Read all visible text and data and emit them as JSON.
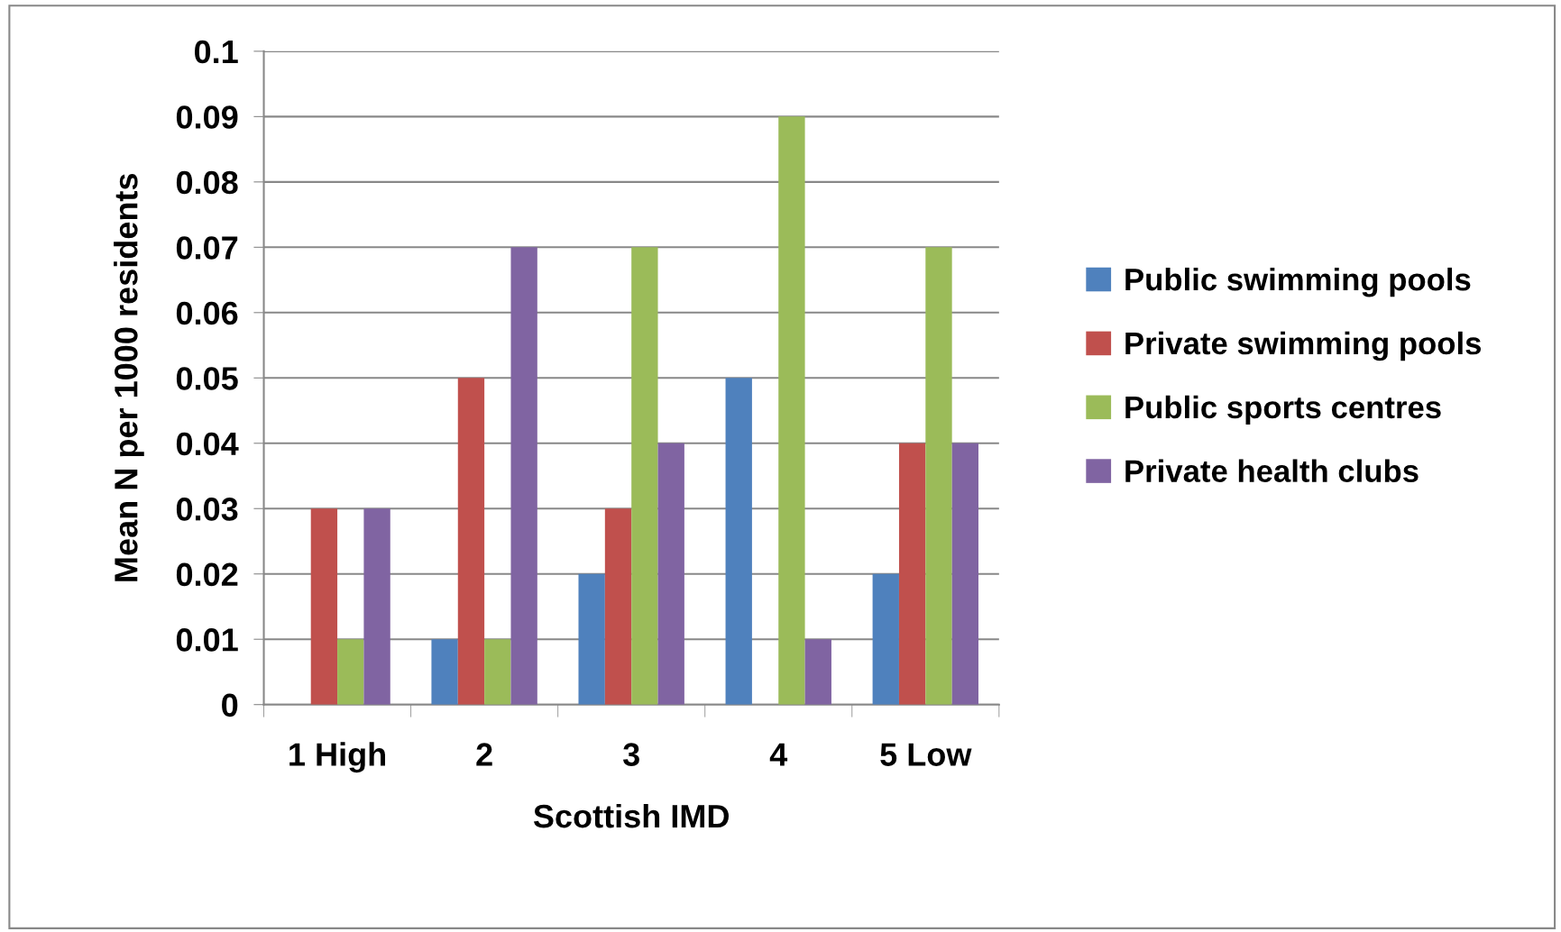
{
  "chart_data": {
    "type": "bar",
    "xlabel": "Scottish IMD",
    "ylabel": "Mean N per 1000 residents",
    "categories": [
      "1 High",
      "2",
      "3",
      "4",
      "5 Low"
    ],
    "series": [
      {
        "name": "Public swimming pools",
        "color": "#4f81bd",
        "values": [
          0,
          0.01,
          0.02,
          0.05,
          0.02
        ]
      },
      {
        "name": "Private swimming pools",
        "color": "#c0504d",
        "values": [
          0.03,
          0.05,
          0.03,
          0,
          0.04
        ]
      },
      {
        "name": "Public sports centres",
        "color": "#9bbb59",
        "values": [
          0.01,
          0.01,
          0.07,
          0.09,
          0.07
        ]
      },
      {
        "name": "Private health clubs",
        "color": "#8064a2",
        "values": [
          0.03,
          0.07,
          0.04,
          0.01,
          0.04
        ]
      }
    ],
    "ylim": [
      0,
      0.1
    ],
    "yticks": [
      0,
      0.01,
      0.02,
      0.03,
      0.04,
      0.05,
      0.06,
      0.07,
      0.08,
      0.09,
      0.1
    ],
    "grid": "y",
    "legend": "right"
  }
}
